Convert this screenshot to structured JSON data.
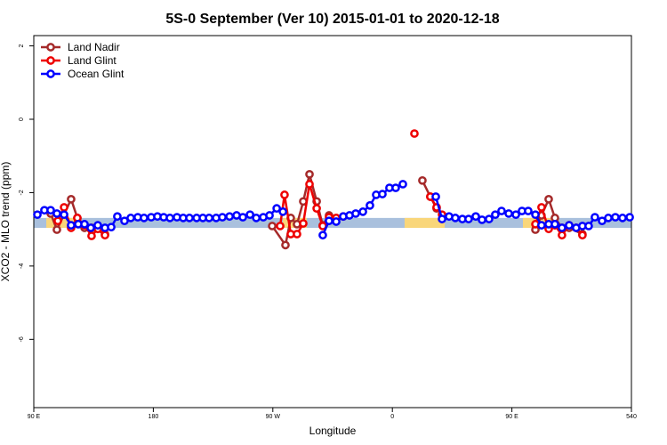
{
  "chart_data": {
    "type": "line",
    "title": "5S-0 September (Ver 10)   2015-01-01 to 2020-12-18",
    "x_label": "Longitude",
    "y_label": "XCO2 - MLO trend (ppm)",
    "xlim": [
      90,
      540
    ],
    "xticks": [
      {
        "value": 90,
        "label": "90 E"
      },
      180,
      {
        "value": 270,
        "label": "90 W"
      },
      {
        "value": 360,
        "label": "0"
      },
      {
        "value": 450,
        "label": "90 E"
      },
      540
    ],
    "ylim": [
      -7.86,
      2.28
    ],
    "yticks": [
      -6,
      -4,
      -2,
      0,
      2
    ],
    "legend": "top-left",
    "band": {
      "ylim": [
        -2.96,
        -2.69
      ],
      "color": "#a9c0dd",
      "highlight_color": "#f9d67a",
      "highlights": [
        [
          99.4,
          124.8
        ],
        [
          277.5,
          295.6
        ],
        [
          369.2,
          399.4
        ],
        [
          458.3,
          483.1
        ]
      ]
    },
    "series": [
      {
        "name": "Land Nadir",
        "color": "#a52a2a",
        "x": [
          102.7,
          107.4,
          118.1,
          122.8,
          128.2,
          133.5,
          143.6,
          null,
          269.5,
          279.5,
          283.5,
          288.2,
          292.9,
          297.6,
          303.0,
          307.6,
          312.3,
          null,
          382.6,
          388.6,
          393.3,
          null,
          467.7,
          472.3,
          477.7,
          482.4,
          487.7,
          493.1,
          503.1
        ],
        "values": [
          -2.57,
          -3.01,
          -2.18,
          -2.69,
          -2.96,
          -2.96,
          -3.13,
          null,
          -2.91,
          -3.43,
          -2.69,
          -2.86,
          -2.24,
          -1.5,
          -2.24,
          -2.89,
          -2.62,
          null,
          -1.67,
          -2.11,
          -2.43,
          null,
          -3.01,
          -2.62,
          -2.18,
          -2.69,
          -2.96,
          -2.96,
          -3.13
        ]
      },
      {
        "name": "Land Glint",
        "color": "#ee0000",
        "x": [
          108.1,
          112.8,
          118.1,
          122.8,
          128.2,
          133.5,
          138.2,
          143.6,
          null,
          275.5,
          278.8,
          283.5,
          288.2,
          292.9,
          297.6,
          303.0,
          307.6,
          312.3,
          317.7,
          323.0,
          null,
          376.6,
          null,
          388.6,
          393.3,
          397.4,
          null,
          467.7,
          472.3,
          477.7,
          482.4,
          487.7,
          493.1,
          498.4,
          503.1
        ],
        "values": [
          -2.77,
          -2.4,
          -2.96,
          -2.69,
          -2.89,
          -3.18,
          -2.99,
          -3.16,
          null,
          -2.91,
          -2.06,
          -3.13,
          -3.13,
          -2.84,
          -1.77,
          -2.43,
          -2.91,
          -2.67,
          -2.69,
          -2.65,
          null,
          -0.39,
          null,
          -2.11,
          -2.4,
          -2.6,
          null,
          -2.86,
          -2.4,
          -2.99,
          -2.89,
          -3.16,
          -2.89,
          -2.96,
          -3.16
        ]
      },
      {
        "name": "Ocean Glint",
        "color": "#0000ff",
        "x": [
          92.7,
          98.0,
          102.7,
          107.4,
          112.8,
          118.1,
          123.5,
          128.2,
          132.9,
          138.2,
          143.6,
          148.3,
          152.9,
          158.3,
          163.0,
          168.3,
          173.0,
          178.4,
          183.1,
          187.8,
          192.5,
          197.8,
          202.5,
          207.2,
          212.6,
          217.3,
          222.0,
          227.3,
          232.0,
          237.4,
          242.7,
          247.4,
          252.8,
          257.5,
          262.8,
          267.5,
          272.9,
          277.6,
          null,
          307.6,
          312.3,
          317.7,
          323.0,
          327.7,
          332.4,
          337.8,
          343.1,
          347.8,
          352.5,
          357.8,
          362.5,
          367.9,
          null,
          392.7,
          397.4,
          402.7,
          407.4,
          412.7,
          417.4,
          422.8,
          427.5,
          432.8,
          437.5,
          442.2,
          447.6,
          453.0,
          457.6,
          462.3,
          467.7,
          472.3,
          477.7,
          482.4,
          487.7,
          493.1,
          498.4,
          503.1,
          507.8,
          512.5,
          517.9,
          522.6,
          527.9,
          533.3,
          538.7
        ],
        "values": [
          -2.6,
          -2.48,
          -2.48,
          -2.57,
          -2.6,
          -2.89,
          -2.86,
          -2.86,
          -2.96,
          -2.89,
          -2.96,
          -2.94,
          -2.65,
          -2.77,
          -2.69,
          -2.67,
          -2.69,
          -2.67,
          -2.65,
          -2.67,
          -2.69,
          -2.67,
          -2.69,
          -2.69,
          -2.69,
          -2.69,
          -2.69,
          -2.69,
          -2.67,
          -2.65,
          -2.62,
          -2.67,
          -2.6,
          -2.69,
          -2.67,
          -2.62,
          -2.43,
          -2.52,
          null,
          -3.16,
          -2.77,
          -2.79,
          -2.65,
          -2.62,
          -2.57,
          -2.52,
          -2.35,
          -2.06,
          -2.04,
          -1.87,
          -1.87,
          -1.77,
          null,
          -2.11,
          -2.72,
          -2.65,
          -2.69,
          -2.72,
          -2.72,
          -2.65,
          -2.74,
          -2.72,
          -2.6,
          -2.5,
          -2.57,
          -2.6,
          -2.5,
          -2.5,
          -2.6,
          -2.89,
          -2.86,
          -2.86,
          -2.96,
          -2.89,
          -2.96,
          -2.91,
          -2.91,
          -2.67,
          -2.77,
          -2.69,
          -2.67,
          -2.69,
          -2.67
        ]
      }
    ]
  }
}
